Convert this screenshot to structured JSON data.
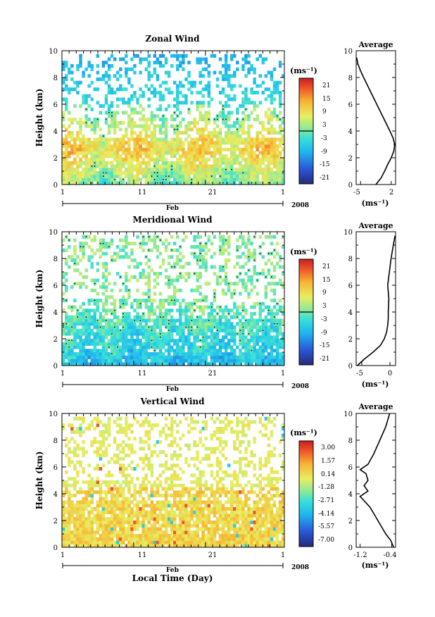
{
  "chart_data": [
    {
      "type": "heatmap",
      "title": "Zonal Wind",
      "ylabel": "Height (km)",
      "ylim": [
        0,
        10
      ],
      "yticks": [
        "0",
        "2",
        "4",
        "6",
        "8",
        "10"
      ],
      "xlim": [
        1,
        32
      ],
      "xticks": [
        "1",
        "11",
        "21",
        "1"
      ],
      "month_label": "Feb",
      "year_label": "2008",
      "colorbar": {
        "unit": "(ms⁻¹)",
        "labels": [
          "21",
          "15",
          "9",
          "3",
          "-3",
          "-9",
          "-15",
          "-21"
        ],
        "range": [
          -24,
          24
        ]
      },
      "average_profile": {
        "title": "Average",
        "xlabel": "(ms⁻¹)",
        "xticks": [
          "-5",
          "2"
        ],
        "xlim": [
          -6,
          3
        ],
        "heights_km": [
          0,
          0.5,
          1,
          1.5,
          2,
          2.5,
          3,
          3.5,
          4,
          5,
          6,
          7,
          8,
          8.5,
          9,
          9.5
        ],
        "values": [
          -1.5,
          -0.3,
          0.5,
          1.2,
          2.0,
          2.6,
          2.8,
          2.4,
          1.7,
          0.2,
          -1.3,
          -2.8,
          -4.3,
          -5.0,
          -5.6,
          -5.9
        ]
      }
    },
    {
      "type": "heatmap",
      "title": "Meridional Wind",
      "ylabel": "Height (km)",
      "ylim": [
        0,
        10
      ],
      "yticks": [
        "0",
        "2",
        "4",
        "6",
        "8",
        "10"
      ],
      "xlim": [
        1,
        32
      ],
      "xticks": [
        "1",
        "11",
        "21",
        "1"
      ],
      "month_label": "Feb",
      "year_label": "2008",
      "colorbar": {
        "unit": "(ms⁻¹)",
        "labels": [
          "21",
          "15",
          "9",
          "3",
          "-3",
          "-9",
          "-15",
          "-21"
        ],
        "range": [
          -24,
          24
        ]
      },
      "average_profile": {
        "title": "Average",
        "xlabel": "(ms⁻¹)",
        "xticks": [
          "-5",
          "0"
        ],
        "xlim": [
          -6,
          1
        ],
        "heights_km": [
          0,
          0.5,
          1,
          1.5,
          2,
          2.5,
          3,
          3.5,
          4,
          5,
          6,
          7,
          8,
          9,
          9.7
        ],
        "values": [
          -5.8,
          -4.5,
          -3.0,
          -1.7,
          -1.0,
          -0.6,
          -0.4,
          -0.3,
          -0.3,
          -0.2,
          -0.4,
          -0.1,
          0.2,
          0.6,
          0.9
        ]
      }
    },
    {
      "type": "heatmap",
      "title": "Vertical Wind",
      "ylabel": "Height (km)",
      "ylim": [
        0,
        10
      ],
      "yticks": [
        "0",
        "2",
        "4",
        "6",
        "8",
        "10"
      ],
      "xlim": [
        1,
        32
      ],
      "xticks": [
        "1",
        "11",
        "21",
        "1"
      ],
      "month_label": "Feb",
      "year_label": "2008",
      "xlabel": "Local Time (Day)",
      "colorbar": {
        "unit": "(ms⁻¹)",
        "labels": [
          "3.00",
          "1.57",
          "0.14",
          "-1.28",
          "-2.71",
          "-4.14",
          "-5.57",
          "-7.00"
        ],
        "range": [
          -7.7,
          3.7
        ]
      },
      "average_profile": {
        "title": "Average",
        "xlabel": "(ms⁻¹)",
        "xticks": [
          "-1.2",
          "-0.4"
        ],
        "xlim": [
          -1.3,
          -0.3
        ],
        "heights_km": [
          0,
          0.5,
          1,
          2,
          3,
          3.8,
          4.2,
          4.6,
          5,
          5.5,
          5.8,
          6.2,
          7,
          8,
          9,
          10
        ],
        "values": [
          -0.35,
          -0.42,
          -0.55,
          -0.75,
          -0.95,
          -1.2,
          -1.0,
          -1.1,
          -1.0,
          -1.05,
          -1.2,
          -1.0,
          -0.85,
          -0.7,
          -0.55,
          -0.45
        ]
      }
    }
  ]
}
